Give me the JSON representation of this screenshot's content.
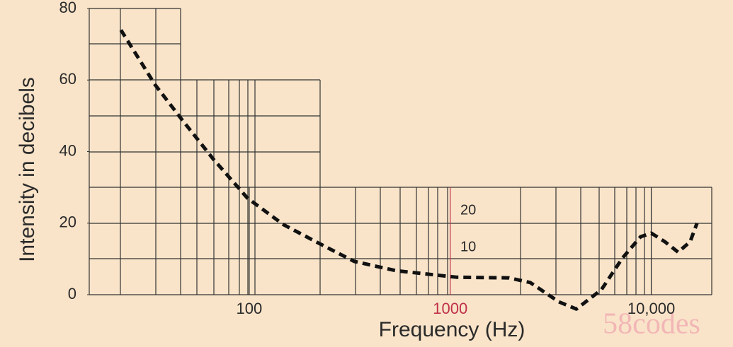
{
  "chart_data": {
    "type": "line",
    "x_label": "Frequency (Hz)",
    "y_label": "Intensity in decibels",
    "log_x": true,
    "xlim": [
      16,
      20000
    ],
    "ylim": [
      0,
      80
    ],
    "xticks": [
      100,
      1000,
      {
        "value": 10000,
        "label": "10,000"
      }
    ],
    "xtick_colors": [
      "#2a2a2a",
      "#c0304a",
      "#2a2a2a"
    ],
    "yticks": [
      0,
      20,
      40,
      60,
      80
    ],
    "annotations": [
      "20",
      "10"
    ],
    "watermark": "58codes",
    "series": [
      {
        "color": "#111111",
        "x": [
          23,
          34,
          45,
          66,
          98,
          148,
          225,
          333,
          540,
          1070,
          1960,
          2500,
          3470,
          4240,
          5650,
          7200,
          8850,
          10000,
          11700,
          13600,
          15600,
          16900
        ],
        "values": [
          74,
          58.7,
          49.8,
          38,
          27,
          19.6,
          14.2,
          9.3,
          6.7,
          4.9,
          4.7,
          3.4,
          -2,
          -4,
          1.4,
          10.3,
          16.2,
          17.2,
          14.8,
          11.9,
          14.8,
          20
        ]
      }
    ]
  }
}
